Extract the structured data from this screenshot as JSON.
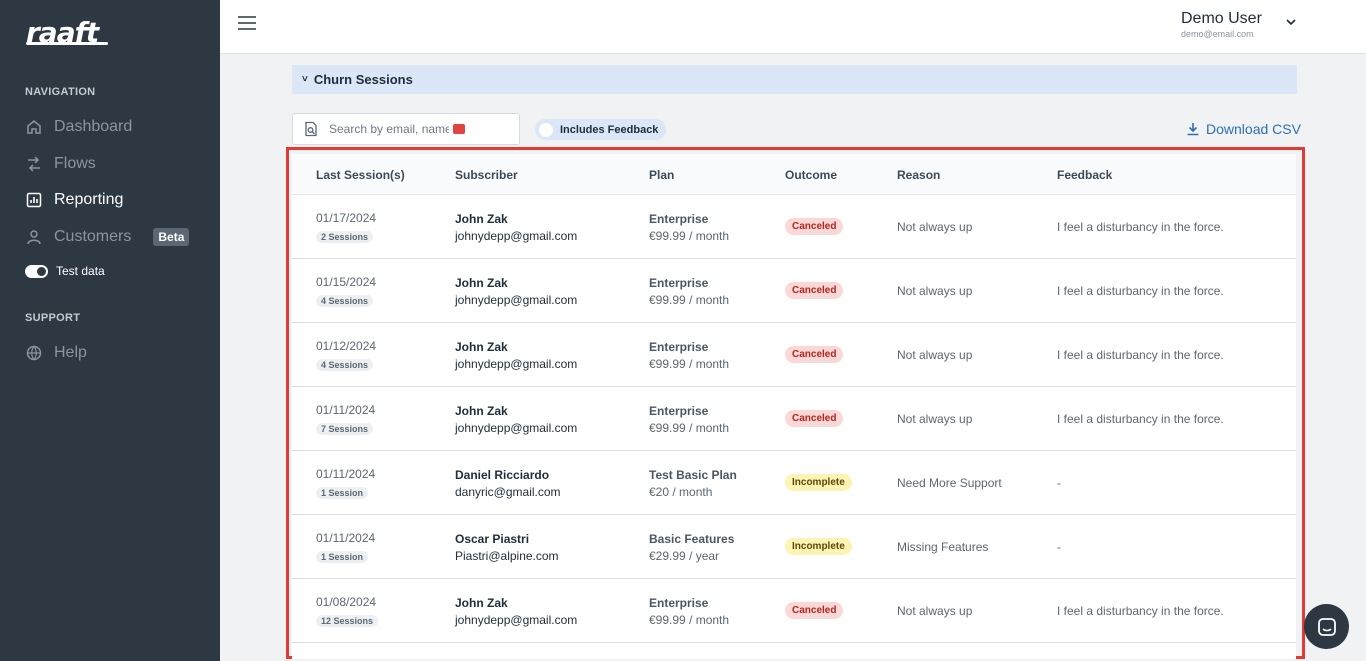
{
  "app": {
    "logo": "raaft"
  },
  "sidebar": {
    "sections": {
      "navigation": "NAVIGATION",
      "support": "SUPPORT"
    },
    "items": [
      {
        "label": "Dashboard",
        "icon": "home-icon"
      },
      {
        "label": "Flows",
        "icon": "flows-icon"
      },
      {
        "label": "Reporting",
        "icon": "reporting-icon",
        "active": true
      },
      {
        "label": "Customers",
        "icon": "user-icon",
        "badge": "Beta"
      }
    ],
    "test_data_label": "Test data",
    "help_label": "Help"
  },
  "header": {
    "user_name": "Demo User",
    "user_email": "demo@email.com"
  },
  "main": {
    "section_title": "Churn Sessions",
    "search_placeholder": "Search by email, name",
    "feedback_filter": "Includes Feedback",
    "download_label": "Download CSV",
    "columns": [
      "Last Session(s)",
      "Subscriber",
      "Plan",
      "Outcome",
      "Reason",
      "Feedback"
    ],
    "rows": [
      {
        "date": "01/17/2024",
        "sessions": "2 Sessions",
        "name": "John Zak",
        "email": "johnydepp@gmail.com",
        "plan": "Enterprise",
        "price": "€99.99 / month",
        "outcome": "Canceled",
        "reason": "Not always up",
        "feedback": "I feel a disturbancy in the force."
      },
      {
        "date": "01/15/2024",
        "sessions": "4 Sessions",
        "name": "John Zak",
        "email": "johnydepp@gmail.com",
        "plan": "Enterprise",
        "price": "€99.99 / month",
        "outcome": "Canceled",
        "reason": "Not always up",
        "feedback": "I feel a disturbancy in the force."
      },
      {
        "date": "01/12/2024",
        "sessions": "4 Sessions",
        "name": "John Zak",
        "email": "johnydepp@gmail.com",
        "plan": "Enterprise",
        "price": "€99.99 / month",
        "outcome": "Canceled",
        "reason": "Not always up",
        "feedback": "I feel a disturbancy in the force."
      },
      {
        "date": "01/11/2024",
        "sessions": "7 Sessions",
        "name": "John Zak",
        "email": "johnydepp@gmail.com",
        "plan": "Enterprise",
        "price": "€99.99 / month",
        "outcome": "Canceled",
        "reason": "Not always up",
        "feedback": "I feel a disturbancy in the force."
      },
      {
        "date": "01/11/2024",
        "sessions": "1 Session",
        "name": "Daniel Ricciardo",
        "email": "danyric@gmail.com",
        "plan": "Test Basic Plan",
        "price": "€20 / month",
        "outcome": "Incomplete",
        "reason": "Need More Support",
        "feedback": "-"
      },
      {
        "date": "01/11/2024",
        "sessions": "1 Session",
        "name": "Oscar Piastri",
        "email": "Piastri@alpine.com",
        "plan": "Basic Features",
        "price": "€29.99 / year",
        "outcome": "Incomplete",
        "reason": "Missing Features",
        "feedback": "-"
      },
      {
        "date": "01/08/2024",
        "sessions": "12 Sessions",
        "name": "John Zak",
        "email": "johnydepp@gmail.com",
        "plan": "Enterprise",
        "price": "€99.99 / month",
        "outcome": "Canceled",
        "reason": "Not always up",
        "feedback": "I feel a disturbancy in the force."
      }
    ]
  },
  "colors": {
    "sidebar": "#2d3843",
    "accent": "#2c6fb6",
    "highlight": "#e23a36",
    "canceled": "#fbd8d8",
    "incomplete": "#fdf3b5"
  }
}
